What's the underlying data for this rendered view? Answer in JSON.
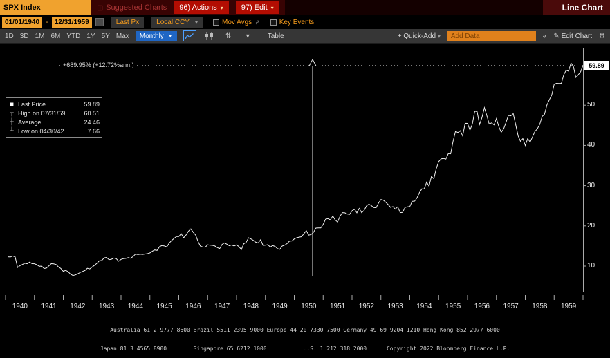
{
  "topbar": {
    "security": "SPX Index",
    "suggested_charts": "Suggested Charts",
    "actions": "96) Actions",
    "edit": "97) Edit",
    "title": "Line Chart"
  },
  "settings_bar": {
    "start_date": "01/01/1940",
    "end_date": "12/31/1959",
    "price_field": "Last Px",
    "currency": "Local CCY",
    "mov_avgs": "Mov Avgs",
    "key_events": "Key Events"
  },
  "toolbar": {
    "ranges": [
      "1D",
      "3D",
      "1M",
      "6M",
      "YTD",
      "1Y",
      "5Y",
      "Max"
    ],
    "period": "Monthly",
    "table": "Table",
    "quick_add": "+ Quick-Add",
    "add_data_placeholder": "Add Data",
    "collapse": "«",
    "edit_chart": "Edit Chart"
  },
  "chart": {
    "annotation": "+689.95% (+12.72%ann.)",
    "last_price_badge": "59.89",
    "legend": [
      {
        "marker": "square",
        "label": "Last Price",
        "value": "59.89"
      },
      {
        "marker": "high",
        "label": "High on 07/31/59",
        "value": "60.51"
      },
      {
        "marker": "avg",
        "label": "Average",
        "value": "24.46"
      },
      {
        "marker": "low",
        "label": "Low on 04/30/42",
        "value": "7.66"
      }
    ]
  },
  "chart_data": {
    "type": "line",
    "title": "SPX Index Line Chart",
    "frequency": "monthly",
    "x_start_year": 1940,
    "xlim": [
      1940,
      1960
    ],
    "ylim": [
      5,
      65
    ],
    "y_ticks": [
      10,
      20,
      30,
      40,
      50
    ],
    "x_tick_labels": [
      "1940",
      "1941",
      "1942",
      "1943",
      "1944",
      "1945",
      "1946",
      "1947",
      "1948",
      "1949",
      "1950",
      "1951",
      "1952",
      "1953",
      "1954",
      "1955",
      "1956",
      "1957",
      "1958",
      "1959"
    ],
    "stats": {
      "last_price": 59.89,
      "high": {
        "date": "07/31/59",
        "value": 60.51
      },
      "average": 24.46,
      "low": {
        "date": "04/30/42",
        "value": 7.66
      },
      "total_return_pct": 689.95,
      "annualized_return_pct": 12.72
    },
    "values": [
      12.3,
      12.25,
      12.5,
      12.27,
      9.65,
      10.1,
      10.4,
      10.7,
      10.58,
      11.0,
      10.6,
      10.58,
      10.35,
      9.95,
      10.0,
      9.4,
      9.5,
      10.05,
      10.6,
      10.55,
      10.4,
      9.8,
      9.4,
      8.69,
      8.93,
      8.6,
      8.01,
      7.66,
      7.8,
      8.07,
      8.4,
      8.66,
      8.9,
      9.45,
      9.3,
      9.77,
      10.2,
      10.7,
      11.3,
      11.4,
      12.05,
      12.15,
      11.6,
      11.7,
      12.0,
      11.85,
      11.2,
      11.67,
      11.85,
      11.9,
      12.1,
      11.95,
      12.35,
      13.0,
      12.85,
      12.95,
      12.9,
      13.0,
      13.1,
      13.28,
      13.7,
      14.0,
      13.9,
      14.85,
      15.1,
      15.0,
      14.8,
      15.7,
      16.35,
      16.85,
      17.35,
      17.36,
      18.05,
      17.05,
      17.7,
      18.65,
      19.25,
      18.4,
      17.7,
      16.15,
      14.95,
      14.75,
      14.7,
      15.3,
      15.2,
      15.15,
      15.0,
      14.6,
      14.35,
      15.4,
      15.75,
      15.45,
      15.05,
      15.25,
      15.0,
      15.3,
      14.85,
      14.1,
      15.55,
      15.9,
      17.05,
      16.75,
      16.4,
      15.95,
      15.75,
      16.55,
      15.15,
      15.2,
      15.35,
      14.75,
      15.1,
      14.9,
      14.35,
      14.15,
      15.0,
      15.2,
      15.6,
      16.2,
      16.25,
      16.75,
      17.05,
      17.2,
      17.3,
      18.05,
      18.8,
      17.7,
      17.85,
      18.4,
      19.45,
      19.5,
      19.5,
      20.4,
      21.65,
      21.8,
      21.5,
      22.45,
      21.5,
      20.95,
      22.4,
      23.3,
      23.25,
      22.95,
      22.85,
      23.75,
      24.15,
      23.25,
      24.35,
      23.3,
      23.85,
      24.95,
      25.4,
      25.05,
      24.55,
      24.5,
      25.65,
      26.55,
      26.4,
      25.9,
      25.3,
      24.6,
      24.8,
      24.15,
      24.75,
      23.3,
      23.35,
      24.55,
      24.75,
      24.8,
      26.1,
      26.15,
      26.95,
      28.25,
      29.2,
      29.2,
      30.9,
      29.85,
      32.3,
      31.7,
      34.25,
      35.98,
      36.65,
      36.75,
      36.6,
      37.95,
      37.9,
      41.05,
      43.5,
      43.2,
      43.65,
      42.35,
      45.5,
      45.48,
      43.8,
      45.35,
      48.5,
      48.4,
      45.2,
      46.95,
      49.4,
      47.5,
      45.35,
      45.6,
      45.1,
      46.67,
      44.7,
      43.25,
      44.1,
      45.75,
      47.45,
      47.35,
      47.9,
      45.2,
      42.4,
      41.05,
      41.7,
      39.99,
      41.7,
      40.85,
      42.1,
      43.45,
      44.1,
      45.25,
      47.2,
      47.75,
      50.05,
      51.35,
      52.5,
      55.21,
      55.45,
      55.4,
      55.45,
      57.6,
      58.7,
      58.45,
      60.51,
      59.6,
      56.9,
      57.55,
      58.3,
      59.89
    ]
  },
  "footer": {
    "line1": "Australia 61 2 9777 8600 Brazil 5511 2395 9000 Europe 44 20 7330 7500 Germany 49 69 9204 1210 Hong Kong 852 2977 6000",
    "line2": "Japan 81 3 4565 8900        Singapore 65 6212 1000           U.S. 1 212 318 2000      Copyright 2022 Bloomberg Finance L.P."
  },
  "colors": {
    "amber": "#f0a22e",
    "orange_text": "#f89d1c",
    "red_button": "#b30d02",
    "blue_button": "#1f66c4",
    "line": "#f2f2f2"
  }
}
